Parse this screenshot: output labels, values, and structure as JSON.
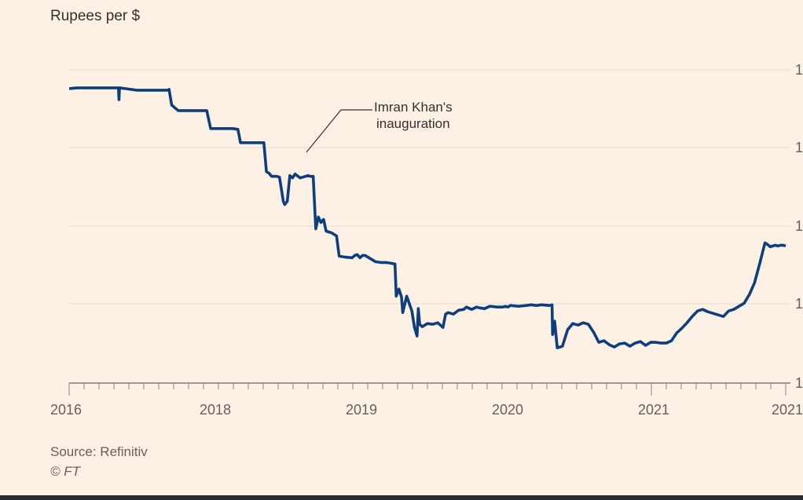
{
  "chart_data": {
    "type": "line",
    "ylabel": "Rupees per $",
    "x_tick_labels": [
      "2016",
      "2018",
      "2019",
      "2020",
      "2021",
      "2021"
    ],
    "y_tick_labels": [
      "1",
      "1",
      "1",
      "1",
      "1"
    ],
    "annotation": {
      "line1": "Imran Khan's",
      "line2": "inauguration"
    },
    "series": [
      {
        "name": "Rupees per $",
        "color": "#0f3e7d",
        "points": [
          [
            0.0,
            110.4
          ],
          [
            0.3,
            110.3
          ],
          [
            1.0,
            110.3
          ],
          [
            1.9,
            110.3
          ],
          [
            1.92,
            111.8
          ],
          [
            1.94,
            110.3
          ],
          [
            2.6,
            110.6
          ],
          [
            3.8,
            110.6
          ],
          [
            3.85,
            110.5
          ],
          [
            3.95,
            112.5
          ],
          [
            4.2,
            113.2
          ],
          [
            5.3,
            113.2
          ],
          [
            5.45,
            115.5
          ],
          [
            6.3,
            115.5
          ],
          [
            6.5,
            115.6
          ],
          [
            6.6,
            117.3
          ],
          [
            7.5,
            117.3
          ],
          [
            7.6,
            121.0
          ],
          [
            7.7,
            121.2
          ],
          [
            7.8,
            121.6
          ],
          [
            8.0,
            121.6
          ],
          [
            8.1,
            121.7
          ],
          [
            8.25,
            124.8
          ],
          [
            8.3,
            125.2
          ],
          [
            8.4,
            124.8
          ],
          [
            8.5,
            121.5
          ],
          [
            8.6,
            121.8
          ],
          [
            8.7,
            121.3
          ],
          [
            8.9,
            121.8
          ],
          [
            9.2,
            121.5
          ],
          [
            9.3,
            121.6
          ],
          [
            9.4,
            121.6
          ],
          [
            9.5,
            128.3
          ],
          [
            9.6,
            126.8
          ],
          [
            9.7,
            127.5
          ],
          [
            9.8,
            127.1
          ],
          [
            9.9,
            128.6
          ],
          [
            10.1,
            128.8
          ],
          [
            10.3,
            129.2
          ],
          [
            10.4,
            131.8
          ],
          [
            10.6,
            131.9
          ],
          [
            10.9,
            132.0
          ],
          [
            11.0,
            131.7
          ],
          [
            11.1,
            131.6
          ],
          [
            11.2,
            132.0
          ],
          [
            11.3,
            131.7
          ],
          [
            11.4,
            131.7
          ],
          [
            11.5,
            131.9
          ],
          [
            11.6,
            132.1
          ],
          [
            11.8,
            132.5
          ],
          [
            12.0,
            132.6
          ],
          [
            12.2,
            132.6
          ],
          [
            12.4,
            132.7
          ],
          [
            12.55,
            132.8
          ],
          [
            12.6,
            136.9
          ],
          [
            12.7,
            136.0
          ],
          [
            12.8,
            137.0
          ],
          [
            12.85,
            139.0
          ],
          [
            13.0,
            136.9
          ],
          [
            13.2,
            138.8
          ],
          [
            13.3,
            140.9
          ],
          [
            13.4,
            142.0
          ],
          [
            13.45,
            138.5
          ],
          [
            13.5,
            140.5
          ],
          [
            13.6,
            140.8
          ],
          [
            13.8,
            140.4
          ],
          [
            14.0,
            140.5
          ],
          [
            14.2,
            140.3
          ],
          [
            14.4,
            140.9
          ],
          [
            14.5,
            139.2
          ],
          [
            14.6,
            139.0
          ],
          [
            14.8,
            139.2
          ],
          [
            15.0,
            138.7
          ],
          [
            15.2,
            138.6
          ],
          [
            15.3,
            138.3
          ],
          [
            15.5,
            138.6
          ],
          [
            15.7,
            138.3
          ],
          [
            15.8,
            138.4
          ],
          [
            16.0,
            138.5
          ],
          [
            16.2,
            138.2
          ],
          [
            16.5,
            138.3
          ],
          [
            16.7,
            138.3
          ],
          [
            16.8,
            138.2
          ],
          [
            16.9,
            138.3
          ],
          [
            17.0,
            138.1
          ],
          [
            17.3,
            138.2
          ],
          [
            17.6,
            138.1
          ],
          [
            17.8,
            138.0
          ],
          [
            18.0,
            138.1
          ],
          [
            18.2,
            138.0
          ],
          [
            18.5,
            138.1
          ],
          [
            18.6,
            138.0
          ],
          [
            18.62,
            141.8
          ],
          [
            18.7,
            140.1
          ],
          [
            18.8,
            143.5
          ],
          [
            19.0,
            143.3
          ],
          [
            19.2,
            141.2
          ],
          [
            19.4,
            140.4
          ],
          [
            19.6,
            140.6
          ],
          [
            19.8,
            140.3
          ],
          [
            20.0,
            140.5
          ],
          [
            20.2,
            141.5
          ],
          [
            20.4,
            142.8
          ],
          [
            20.6,
            142.6
          ],
          [
            20.8,
            143.1
          ],
          [
            21.0,
            143.4
          ],
          [
            21.2,
            143.0
          ],
          [
            21.4,
            142.9
          ],
          [
            21.6,
            143.3
          ],
          [
            21.8,
            142.9
          ],
          [
            22.0,
            142.7
          ],
          [
            22.2,
            143.2
          ],
          [
            22.4,
            142.8
          ],
          [
            22.6,
            142.8
          ],
          [
            22.8,
            142.9
          ],
          [
            23.0,
            142.9
          ],
          [
            23.2,
            142.6
          ],
          [
            23.4,
            141.6
          ],
          [
            23.6,
            141.0
          ],
          [
            23.8,
            140.3
          ],
          [
            24.0,
            139.5
          ],
          [
            24.2,
            138.8
          ],
          [
            24.4,
            138.6
          ],
          [
            24.6,
            138.9
          ],
          [
            24.8,
            139.1
          ],
          [
            25.0,
            139.3
          ],
          [
            25.2,
            139.5
          ],
          [
            25.4,
            138.8
          ],
          [
            25.6,
            138.6
          ],
          [
            25.8,
            138.2
          ],
          [
            26.0,
            137.8
          ],
          [
            26.2,
            136.7
          ],
          [
            26.4,
            135.2
          ],
          [
            26.6,
            132.7
          ],
          [
            26.8,
            130.1
          ],
          [
            26.9,
            130.3
          ],
          [
            27.0,
            130.6
          ],
          [
            27.1,
            130.5
          ],
          [
            27.2,
            130.4
          ],
          [
            27.3,
            130.5
          ],
          [
            27.4,
            130.4
          ],
          [
            27.5,
            130.4
          ],
          [
            27.6,
            130.5
          ]
        ]
      }
    ]
  }
}
